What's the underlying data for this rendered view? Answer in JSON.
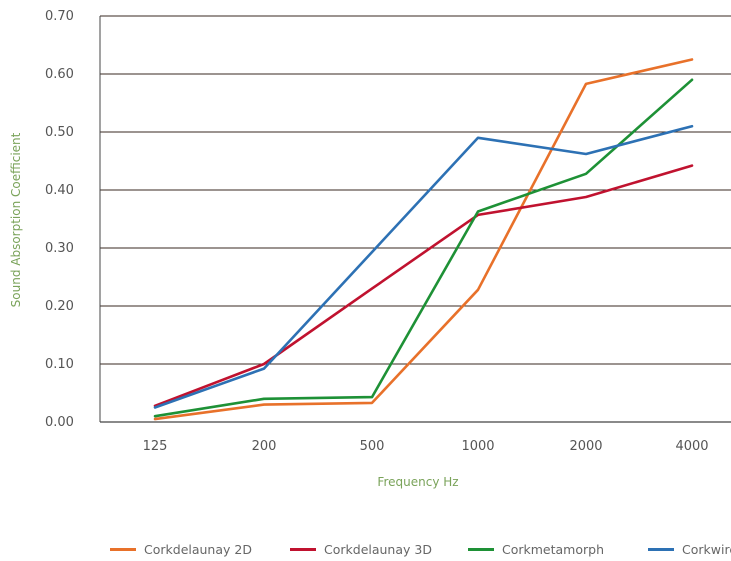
{
  "chart_data": {
    "type": "line",
    "title": "",
    "xlabel": "Frequency Hz",
    "ylabel": "Sound Absorption Coefficient",
    "categories": [
      "125",
      "200",
      "500",
      "1000",
      "2000",
      "4000"
    ],
    "ylim": [
      0,
      0.7
    ],
    "yticks": [
      "0.00",
      "0.10",
      "0.20",
      "0.30",
      "0.40",
      "0.50",
      "0.60",
      "0.70"
    ],
    "grid": true,
    "legend_position": "bottom",
    "series": [
      {
        "name": "Corkdelaunay 2D",
        "color": "#e8712a",
        "values": [
          0.005,
          0.03,
          0.033,
          0.228,
          0.583,
          0.625
        ]
      },
      {
        "name": "Corkdelaunay 3D",
        "color": "#c0122f",
        "values": [
          0.028,
          0.1,
          0.23,
          0.357,
          0.388,
          0.442
        ]
      },
      {
        "name": "Corkmetamorph",
        "color": "#1e9136",
        "values": [
          0.01,
          0.04,
          0.043,
          0.363,
          0.428,
          0.59
        ]
      },
      {
        "name": "Corkwire",
        "color": "#2d71b4",
        "values": [
          0.025,
          0.092,
          0.293,
          0.49,
          0.462,
          0.51
        ]
      }
    ]
  }
}
